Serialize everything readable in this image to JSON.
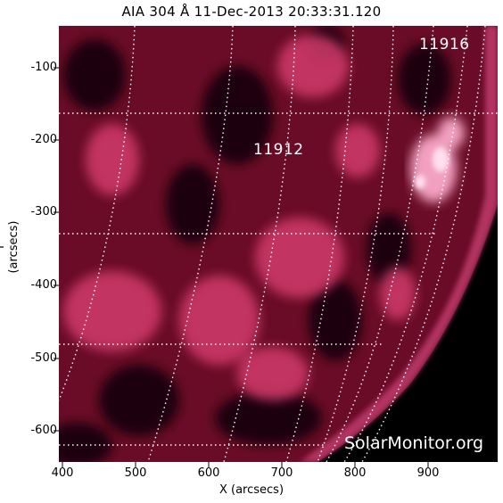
{
  "title": "AIA 304 Å 11-Dec-2013 20:33:31.120",
  "axes": {
    "xlabel": "X (arcsecs)",
    "ylabel": "Y (arcsecs)",
    "xticks": [
      "400",
      "500",
      "600",
      "700",
      "800",
      "900"
    ],
    "yticks": [
      "-100",
      "-200",
      "-300",
      "-400",
      "-500",
      "-600"
    ]
  },
  "regions": [
    {
      "label": "11912"
    },
    {
      "label": "11916"
    }
  ],
  "watermark": "SolarMonitor.org",
  "colors": {
    "sun_base": "#7a0f2c",
    "plage": "#e0457a",
    "bright": "#ffd0e0",
    "space": "#000000",
    "grid": "#ffffff"
  }
}
